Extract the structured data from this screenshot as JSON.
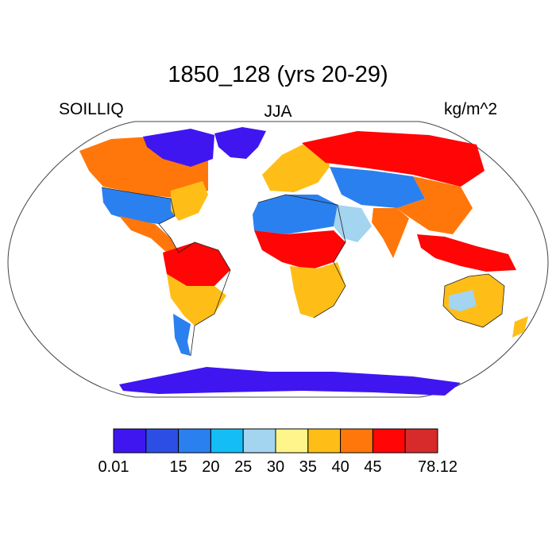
{
  "title": "1850_128 (yrs 20-29)",
  "left_label": "SOILLIQ",
  "center_label": "JJA",
  "right_label": "kg/m^2",
  "colorbar": {
    "colors": [
      "#3f16f0",
      "#2d4ee4",
      "#2b80ef",
      "#14bdf6",
      "#a3d4f0",
      "#fff58a",
      "#ffbe17",
      "#ff770a",
      "#ff0505",
      "#d72a2a"
    ],
    "tick_labels": [
      "0.01",
      "15",
      "20",
      "25",
      "30",
      "35",
      "40",
      "45",
      "78.12"
    ],
    "tick_boundaries": [
      0,
      2,
      3,
      4,
      5,
      6,
      7,
      8,
      10
    ]
  },
  "land_fill": [
    {
      "region": "alaska-canada",
      "color": "#ff770a"
    },
    {
      "region": "canadian-shield",
      "color": "#3f16f0"
    },
    {
      "region": "greenland",
      "color": "#3f16f0"
    },
    {
      "region": "usa",
      "color": "#2b80ef"
    },
    {
      "region": "eastern-usa",
      "color": "#ffbe17"
    },
    {
      "region": "mexico-central-america",
      "color": "#ff770a"
    },
    {
      "region": "amazon",
      "color": "#ff0505"
    },
    {
      "region": "south-america-south",
      "color": "#ffbe17"
    },
    {
      "region": "patagonia",
      "color": "#2b80ef"
    },
    {
      "region": "europe",
      "color": "#ffbe17"
    },
    {
      "region": "siberia",
      "color": "#ff0505"
    },
    {
      "region": "central-asia",
      "color": "#2b80ef"
    },
    {
      "region": "china",
      "color": "#ff770a"
    },
    {
      "region": "india",
      "color": "#ff770a"
    },
    {
      "region": "sahara",
      "color": "#2b80ef"
    },
    {
      "region": "arabia",
      "color": "#a3d4f0"
    },
    {
      "region": "sahel-congo",
      "color": "#ff0505"
    },
    {
      "region": "southern-africa",
      "color": "#ffbe17"
    },
    {
      "region": "southeast-asia",
      "color": "#ff0505"
    },
    {
      "region": "australia",
      "color": "#ffbe17"
    },
    {
      "region": "australia-interior",
      "color": "#a3d4f0"
    },
    {
      "region": "antarctica",
      "color": "#3f16f0"
    }
  ]
}
